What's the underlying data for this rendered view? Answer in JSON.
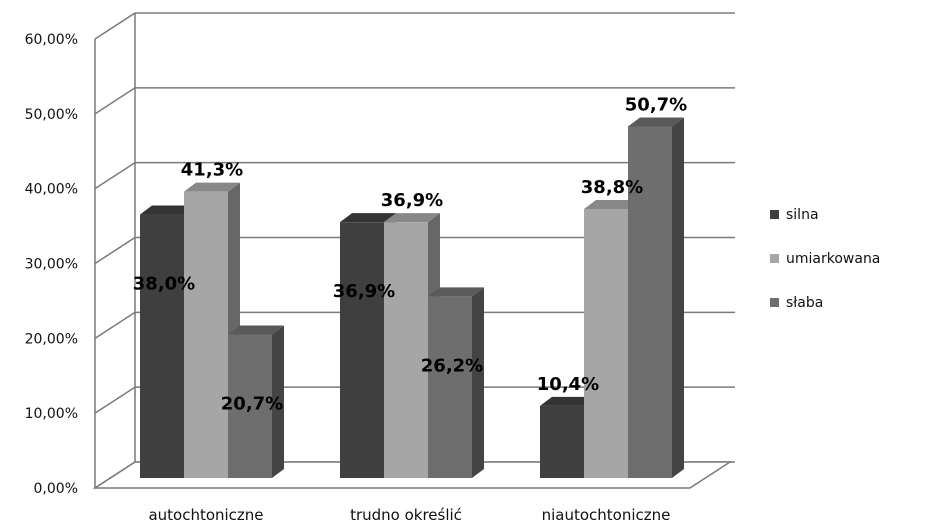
{
  "chart_data": {
    "type": "bar",
    "categories": [
      "autochtoniczne",
      "trudno określić",
      "niautochtoniczne"
    ],
    "series": [
      {
        "name": "silna",
        "values": [
          38.0,
          36.9,
          10.4
        ],
        "labels": [
          "38,0%",
          "36,9%",
          "10,4%"
        ],
        "color": "#3f3f3f"
      },
      {
        "name": "umiarkowana",
        "values": [
          41.3,
          36.9,
          38.8
        ],
        "labels": [
          "41,3%",
          "36,9%",
          "38,8%"
        ],
        "color": "#a6a6a6"
      },
      {
        "name": "słaba",
        "values": [
          20.7,
          26.2,
          50.7
        ],
        "labels": [
          "20,7%",
          "26,2%",
          "50,7%"
        ],
        "color": "#6e6e6e"
      }
    ],
    "yticks": [
      "0,00%",
      "10,00%",
      "20,00%",
      "30,00%",
      "40,00%",
      "50,00%",
      "60,00%"
    ],
    "ylim": [
      0,
      60
    ],
    "grid": true,
    "legend": "right",
    "style": "3d-clustered-column",
    "title": "",
    "xlabel": "",
    "ylabel": ""
  }
}
